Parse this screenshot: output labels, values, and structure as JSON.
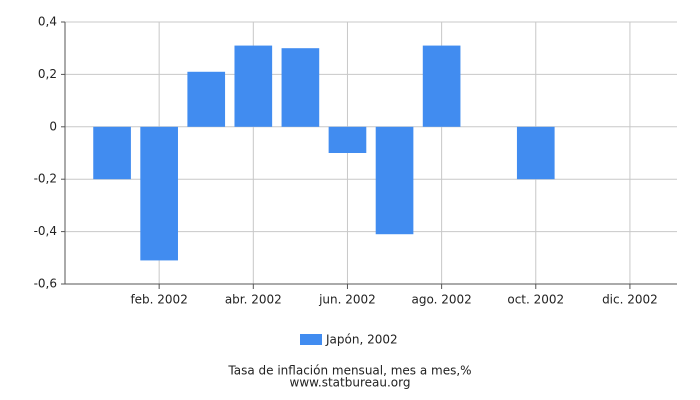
{
  "chart_data": {
    "type": "bar",
    "categories": [
      null,
      "feb. 2002",
      null,
      "abr. 2002",
      null,
      "jun. 2002",
      null,
      "ago. 2002",
      null,
      "oct. 2002",
      null,
      "dic. 2002"
    ],
    "series": [
      {
        "name": "Japón, 2002",
        "color": "#418cf0",
        "values": [
          -0.2,
          -0.51,
          0.21,
          0.31,
          0.3,
          -0.1,
          -0.41,
          0.31,
          0,
          -0.2,
          null,
          null
        ]
      }
    ],
    "ylim": [
      -0.6,
      0.4
    ],
    "yticks": [
      {
        "value": -0.6,
        "label": "-0,6"
      },
      {
        "value": -0.4,
        "label": "-0,4"
      },
      {
        "value": -0.2,
        "label": "-0,2"
      },
      0,
      {
        "value": 0.2,
        "label": "0,2"
      },
      {
        "value": 0.4,
        "label": "0,4"
      }
    ],
    "grid": true,
    "xlabel": "Tasa de inflación mensual, mes a mes,%",
    "source": "www.statbureau.org"
  }
}
